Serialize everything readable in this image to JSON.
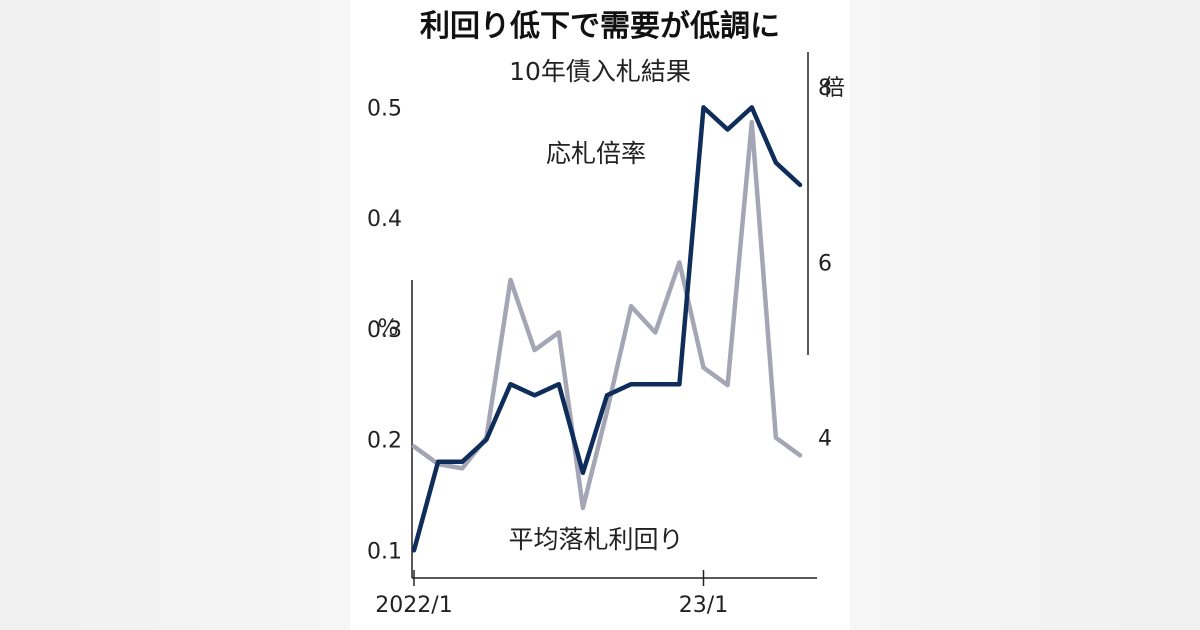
{
  "title": "利回り低下で需要が低調に",
  "subtitle": "10年債入札結果",
  "chart_data": {
    "type": "line",
    "x_labels": [
      "2022/1",
      "23/1"
    ],
    "left_axis": {
      "unit": "%",
      "ticks": [
        0.1,
        0.2,
        0.3,
        0.4,
        0.5
      ],
      "range": [
        0.075,
        0.55
      ]
    },
    "right_axis": {
      "unit": "倍",
      "ticks": [
        4,
        6,
        8
      ],
      "range": [
        2.4,
        8.4
      ]
    },
    "series": [
      {
        "name": "応札倍率",
        "axis": "right",
        "color": "#a4a6b6",
        "values": [
          3.9,
          3.7,
          3.65,
          4.0,
          5.8,
          5.0,
          5.2,
          3.2,
          4.3,
          5.5,
          5.2,
          6.0,
          4.8,
          4.6,
          7.6,
          4.0,
          3.8
        ]
      },
      {
        "name": "平均落札利回り",
        "axis": "left",
        "color": "#0f2d5a",
        "values": [
          0.1,
          0.18,
          0.18,
          0.2,
          0.25,
          0.24,
          0.25,
          0.17,
          0.24,
          0.25,
          0.25,
          0.25,
          0.5,
          0.48,
          0.5,
          0.45,
          0.43
        ]
      }
    ]
  }
}
